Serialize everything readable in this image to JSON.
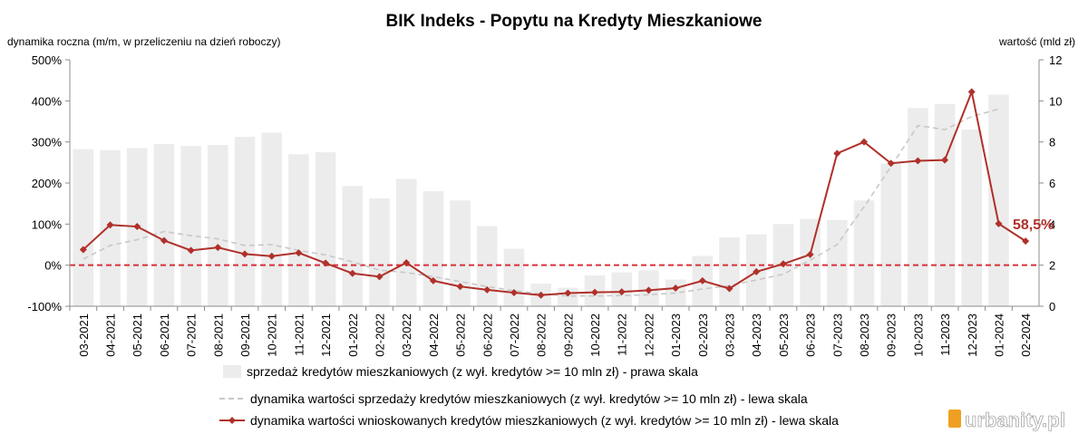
{
  "colors": {
    "bars": "#ececec",
    "dashed_line": "#c8c8c8",
    "main_line": "#b0302a",
    "zero_line": "#d9303a",
    "watermark": "#f0a020"
  },
  "watermark": "urbanity.pl",
  "callout": "58,5%",
  "chart_data": {
    "type": "bar",
    "title": "BIK Indeks - Popytu na Kredyty Mieszkaniowe",
    "ylabel_left": "dynamika roczna (m/m, w przeliczeniu na dzień roboczy)",
    "ylabel_right": "wartość (mld zł)",
    "yticks_left": [
      "-100%",
      "0%",
      "100%",
      "200%",
      "300%",
      "400%",
      "500%"
    ],
    "yticks_right": [
      "0",
      "2",
      "4",
      "6",
      "8",
      "10",
      "12"
    ],
    "ylim_left": [
      -100,
      500
    ],
    "ylim_right": [
      0,
      12
    ],
    "categories": [
      "03-2021",
      "04-2021",
      "05-2021",
      "06-2021",
      "07-2021",
      "08-2021",
      "09-2021",
      "10-2021",
      "11-2021",
      "12-2021",
      "01-2022",
      "02-2022",
      "03-2022",
      "04-2022",
      "05-2022",
      "06-2022",
      "07-2022",
      "08-2022",
      "09-2022",
      "10-2022",
      "11-2022",
      "12-2022",
      "01-2023",
      "02-2023",
      "03-2023",
      "04-2023",
      "05-2023",
      "06-2023",
      "07-2023",
      "08-2023",
      "09-2023",
      "10-2023",
      "11-2023",
      "12-2023",
      "01-2024",
      "02-2024"
    ],
    "series": [
      {
        "name": "sprzedaż kredytów mieszkaniowych (z wył. kredytów >= 10 mln zł) - prawa skala",
        "type": "bar",
        "axis": "right",
        "values": [
          7.65,
          7.6,
          7.7,
          7.9,
          7.8,
          7.85,
          8.25,
          8.45,
          7.4,
          7.5,
          5.85,
          5.25,
          6.2,
          5.6,
          5.15,
          3.9,
          2.8,
          1.1,
          0.9,
          1.5,
          1.65,
          1.75,
          1.3,
          2.45,
          3.35,
          3.5,
          4.0,
          4.25,
          4.2,
          5.15,
          6.95,
          9.65,
          9.85,
          8.6,
          10.3,
          null
        ]
      },
      {
        "name": "dynamika wartości sprzedaży kredytów mieszkaniowych (z wył. kredytów >= 10 mln zł) - lewa skala",
        "type": "line",
        "style": "dashed",
        "axis": "left",
        "values": [
          15,
          48,
          62,
          82,
          72,
          64,
          48,
          50,
          36,
          25,
          8,
          -12,
          -18,
          -28,
          -40,
          -52,
          -62,
          -70,
          -75,
          -75,
          -74,
          -72,
          -68,
          -58,
          -50,
          -36,
          -22,
          12,
          50,
          142,
          240,
          340,
          330,
          362,
          380,
          null
        ]
      },
      {
        "name": "dynamika wartości wnioskowanych kredytów mieszkaniowych (z wył. kredytów >= 10 mln zł) - lewa skala",
        "type": "line",
        "style": "solid",
        "marker": "diamond",
        "axis": "left",
        "values": [
          38,
          98,
          94,
          60,
          36,
          43,
          27,
          22,
          30,
          5,
          -20,
          -28,
          6,
          -38,
          -52,
          -60,
          -67,
          -73,
          -68,
          -66,
          -65,
          -61,
          -56,
          -38,
          -57,
          -16,
          3,
          26,
          272,
          300,
          248,
          254,
          256,
          422,
          101,
          58.5
        ]
      }
    ],
    "grid": false,
    "legend_position": "bottom"
  }
}
